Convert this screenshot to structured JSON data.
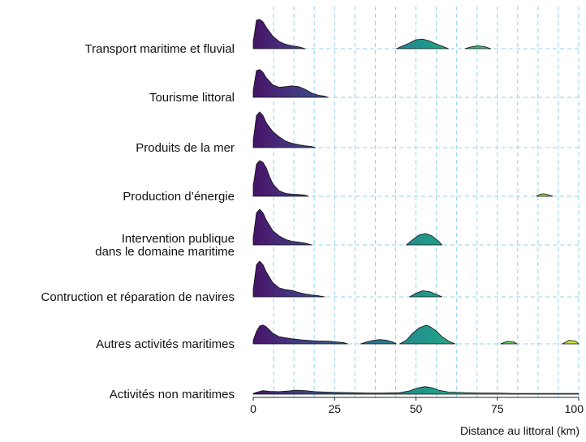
{
  "chart_data": {
    "type": "area",
    "subtype": "ridgeline",
    "xlabel": "Distance au littoral (km)",
    "ylabel": "",
    "title": "",
    "xlim": [
      0,
      100
    ],
    "xticks": [
      0,
      25,
      50,
      75,
      100
    ],
    "grid": true,
    "legend": "none",
    "colormap": "viridis (by distance)",
    "categories": [
      "Activités non maritimes",
      "Autres activités maritimes",
      "Contruction et réparation de navires",
      "Intervention publique dans le domaine maritime",
      "Production d’énergie",
      "Produits de la mer",
      "Tourisme littoral",
      "Transport maritime et fluvial"
    ],
    "category_label_lines": [
      [
        "Activités non maritimes"
      ],
      [
        "Autres activités maritimes"
      ],
      [
        "Contruction et réparation de navires"
      ],
      [
        "Intervention publique",
        "dans le domaine maritime"
      ],
      [
        "Production d’énergie"
      ],
      [
        "Produits de la mer"
      ],
      [
        "Tourisme littoral"
      ],
      [
        "Transport maritime et fluvial"
      ]
    ],
    "series": [
      {
        "category": "Activités non maritimes",
        "segments": [
          {
            "x": [
              0,
              1,
              3,
              5,
              8,
              11,
              13,
              16,
              19,
              22,
              25,
              30,
              35,
              40,
              45,
              48,
              50,
              52,
              53,
              55,
              57,
              60,
              65,
              70,
              75,
              80,
              85,
              90,
              95,
              100
            ],
            "y": [
              0.02,
              0.05,
              0.1,
              0.08,
              0.07,
              0.09,
              0.11,
              0.1,
              0.07,
              0.06,
              0.05,
              0.04,
              0.03,
              0.03,
              0.04,
              0.09,
              0.16,
              0.2,
              0.21,
              0.18,
              0.11,
              0.06,
              0.04,
              0.03,
              0.03,
              0.02,
              0.02,
              0.02,
              0.02,
              0.02
            ]
          }
        ]
      },
      {
        "category": "Autres activités maritimes",
        "segments": [
          {
            "x": [
              0,
              1,
              2,
              3,
              4,
              6,
              8,
              10,
              12,
              15,
              18,
              20,
              22,
              24,
              26,
              28,
              29
            ],
            "y": [
              0.1,
              0.35,
              0.5,
              0.53,
              0.48,
              0.3,
              0.2,
              0.17,
              0.14,
              0.11,
              0.09,
              0.08,
              0.08,
              0.07,
              0.05,
              0.03,
              0.0
            ]
          },
          {
            "x": [
              33,
              35,
              37,
              39,
              41,
              43,
              44
            ],
            "y": [
              0.0,
              0.06,
              0.1,
              0.12,
              0.1,
              0.05,
              0.0
            ]
          },
          {
            "x": [
              45,
              47,
              49,
              51,
              53,
              54,
              56,
              58,
              60,
              62
            ],
            "y": [
              0.0,
              0.1,
              0.3,
              0.45,
              0.52,
              0.5,
              0.38,
              0.2,
              0.08,
              0.0
            ]
          },
          {
            "x": [
              76,
              78,
              80,
              81
            ],
            "y": [
              0.0,
              0.07,
              0.06,
              0.0
            ]
          },
          {
            "x": [
              95,
              97,
              99,
              100
            ],
            "y": [
              0.0,
              0.1,
              0.08,
              0.0
            ]
          }
        ]
      },
      {
        "category": "Contruction et réparation de navires",
        "segments": [
          {
            "x": [
              0,
              1,
              2,
              3,
              4,
              6,
              8,
              10,
              12,
              14,
              16,
              18,
              20,
              22
            ],
            "y": [
              0.2,
              0.9,
              1.0,
              0.9,
              0.7,
              0.4,
              0.25,
              0.2,
              0.18,
              0.12,
              0.08,
              0.05,
              0.03,
              0.0
            ]
          },
          {
            "x": [
              48,
              50,
              52,
              54,
              56,
              58
            ],
            "y": [
              0.0,
              0.1,
              0.17,
              0.15,
              0.08,
              0.0
            ]
          }
        ]
      },
      {
        "category": "Intervention publique dans le domaine maritime",
        "segments": [
          {
            "x": [
              0,
              1,
              2,
              3,
              4,
              6,
              8,
              10,
              12,
              14,
              16,
              18
            ],
            "y": [
              0.2,
              0.9,
              1.0,
              0.9,
              0.7,
              0.4,
              0.25,
              0.15,
              0.1,
              0.08,
              0.05,
              0.0
            ]
          },
          {
            "x": [
              47,
              49,
              51,
              53,
              55,
              57,
              58
            ],
            "y": [
              0.0,
              0.15,
              0.28,
              0.32,
              0.25,
              0.1,
              0.0
            ]
          }
        ]
      },
      {
        "category": "Production d’énergie",
        "segments": [
          {
            "x": [
              0,
              1,
              2,
              3,
              4,
              5,
              6,
              8,
              10,
              12,
              14,
              16,
              17
            ],
            "y": [
              0.3,
              0.9,
              1.0,
              0.95,
              0.8,
              0.55,
              0.35,
              0.15,
              0.08,
              0.06,
              0.05,
              0.03,
              0.0
            ]
          },
          {
            "x": [
              87,
              88,
              89,
              90,
              91,
              92
            ],
            "y": [
              0.0,
              0.05,
              0.07,
              0.06,
              0.03,
              0.0
            ]
          }
        ]
      },
      {
        "category": "Produits de la mer",
        "segments": [
          {
            "x": [
              0,
              1,
              2,
              3,
              4,
              6,
              8,
              10,
              12,
              14,
              16,
              18,
              19
            ],
            "y": [
              0.2,
              0.9,
              1.0,
              0.9,
              0.7,
              0.45,
              0.3,
              0.18,
              0.12,
              0.08,
              0.05,
              0.03,
              0.0
            ]
          }
        ]
      },
      {
        "category": "Tourisme littoral",
        "segments": [
          {
            "x": [
              0,
              1,
              2,
              3,
              4,
              6,
              8,
              10,
              12,
              14,
              16,
              18,
              20,
              22,
              23
            ],
            "y": [
              0.2,
              0.75,
              0.78,
              0.7,
              0.55,
              0.35,
              0.28,
              0.3,
              0.32,
              0.3,
              0.22,
              0.12,
              0.06,
              0.03,
              0.0
            ]
          }
        ]
      },
      {
        "category": "Transport maritime et fluvial",
        "segments": [
          {
            "x": [
              0,
              1,
              2,
              3,
              4,
              6,
              8,
              10,
              12,
              14,
              16
            ],
            "y": [
              0.2,
              0.8,
              0.82,
              0.75,
              0.6,
              0.35,
              0.2,
              0.12,
              0.08,
              0.05,
              0.0
            ]
          },
          {
            "x": [
              44,
              46,
              48,
              50,
              52,
              54,
              56,
              58,
              60
            ],
            "y": [
              0.0,
              0.08,
              0.16,
              0.25,
              0.27,
              0.22,
              0.14,
              0.07,
              0.0
            ]
          },
          {
            "x": [
              65,
              67,
              69,
              71,
              73
            ],
            "y": [
              0.0,
              0.05,
              0.08,
              0.06,
              0.0
            ]
          }
        ]
      }
    ]
  }
}
